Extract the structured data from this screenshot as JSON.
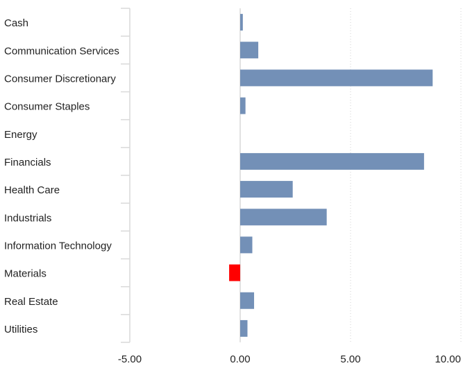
{
  "chart_data": {
    "type": "bar",
    "orientation": "horizontal",
    "categories": [
      "Cash",
      "Communication Services",
      "Consumer Discretionary",
      "Consumer Staples",
      "Energy",
      "Financials",
      "Health Care",
      "Industrials",
      "Information Technology",
      "Materials",
      "Real Estate",
      "Utilities"
    ],
    "values": [
      0.12,
      0.82,
      8.72,
      0.24,
      0.0,
      8.33,
      2.38,
      3.92,
      0.55,
      -0.5,
      0.63,
      0.33
    ],
    "x_ticks": [
      "-5.00",
      "0.00",
      "5.00",
      "10.00"
    ],
    "xlim": [
      -5,
      10
    ],
    "grid": "vertical dotted",
    "colors": {
      "positive": "#7390b7",
      "negative": "#ff0000",
      "axis": "#d9d9d9",
      "grid": "#d0d0d0"
    }
  }
}
